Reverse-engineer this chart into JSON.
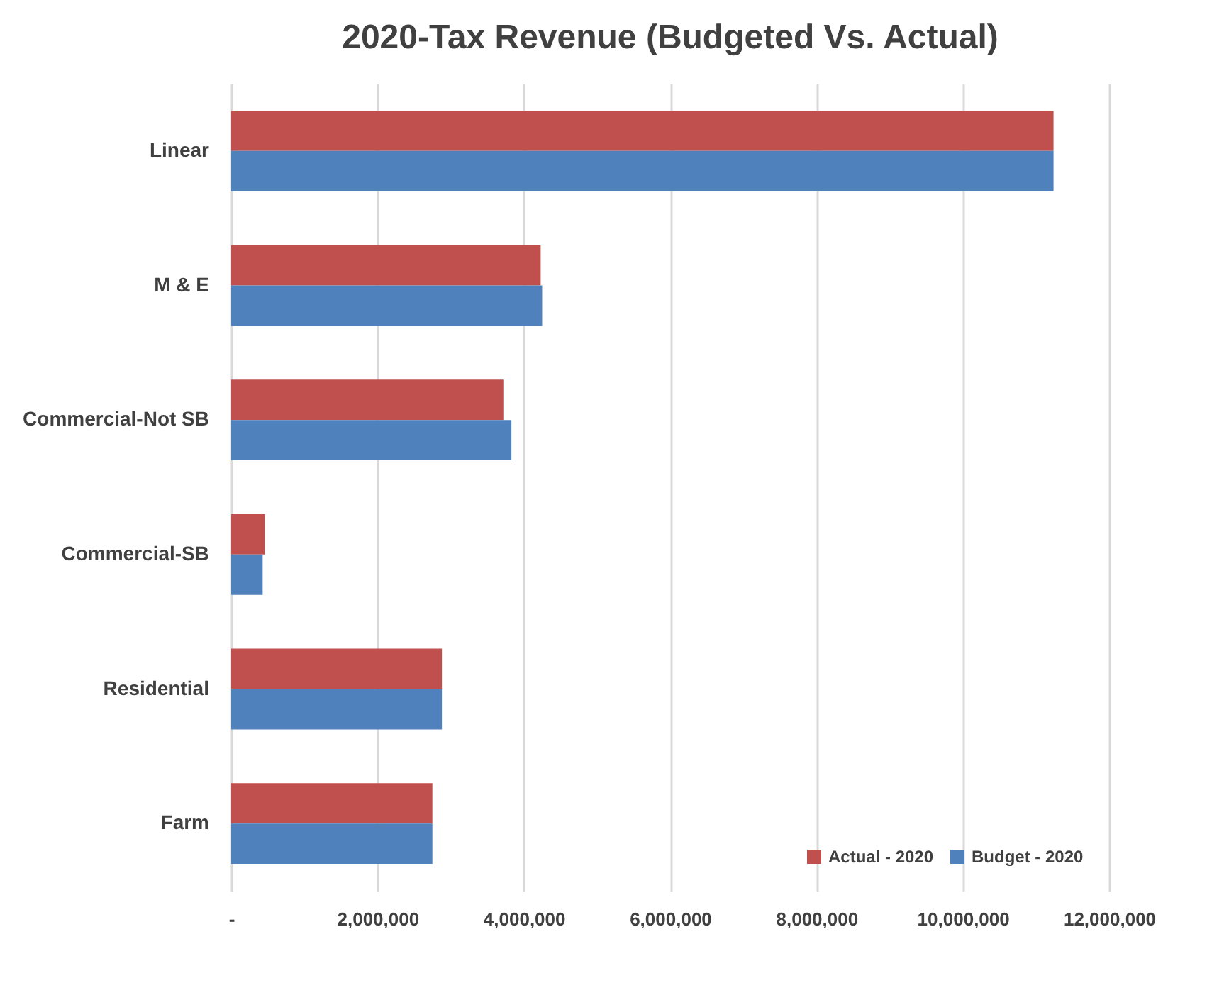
{
  "chart_data": {
    "type": "bar",
    "orientation": "horizontal",
    "title": "2020-Tax Revenue (Budgeted Vs. Actual)",
    "categories": [
      "Linear",
      "M & E",
      "Commercial-Not SB",
      "Commercial-SB",
      "Residential",
      "Farm"
    ],
    "series": [
      {
        "name": "Actual - 2020",
        "color": "#c0504d",
        "values": [
          11240000,
          4230000,
          3720000,
          460000,
          2880000,
          2750000
        ]
      },
      {
        "name": "Budget - 2020",
        "color": "#4f81bd",
        "values": [
          11240000,
          4250000,
          3830000,
          430000,
          2880000,
          2750000
        ]
      }
    ],
    "xlim": [
      0,
      12000000
    ],
    "xticks": [
      {
        "value": 0,
        "label": "-"
      },
      {
        "value": 2000000,
        "label": "2,000,000"
      },
      {
        "value": 4000000,
        "label": "4,000,000"
      },
      {
        "value": 6000000,
        "label": "6,000,000"
      },
      {
        "value": 8000000,
        "label": "8,000,000"
      },
      {
        "value": 10000000,
        "label": "10,000,000"
      },
      {
        "value": 12000000,
        "label": "12,000,000"
      }
    ],
    "grid": "x",
    "legend": "bottom right"
  }
}
